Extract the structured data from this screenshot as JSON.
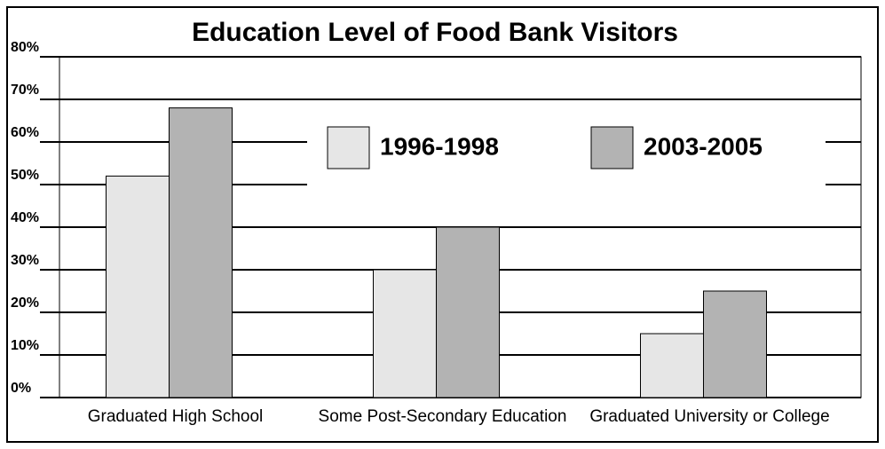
{
  "chart_data": {
    "type": "bar",
    "title": "Education Level of Food Bank Visitors",
    "categories": [
      "Graduated High School",
      "Some Post-Secondary Education",
      "Graduated University or College"
    ],
    "series": [
      {
        "name": "1996-1998",
        "color": "#e6e6e6",
        "values": [
          52,
          30,
          15
        ]
      },
      {
        "name": "2003-2005",
        "color": "#b3b3b3",
        "values": [
          68,
          40,
          25
        ]
      }
    ],
    "ylim": [
      0,
      80
    ],
    "yticks": [
      {
        "value": 0,
        "label": "0%"
      },
      {
        "value": 10,
        "label": "10%"
      },
      {
        "value": 20,
        "label": "20%"
      },
      {
        "value": 30,
        "label": "30%"
      },
      {
        "value": 40,
        "label": "40%"
      },
      {
        "value": 50,
        "label": "50%"
      },
      {
        "value": 60,
        "label": "60%"
      },
      {
        "value": 70,
        "label": "70%"
      },
      {
        "value": 80,
        "label": "80%"
      }
    ],
    "grid": true
  }
}
